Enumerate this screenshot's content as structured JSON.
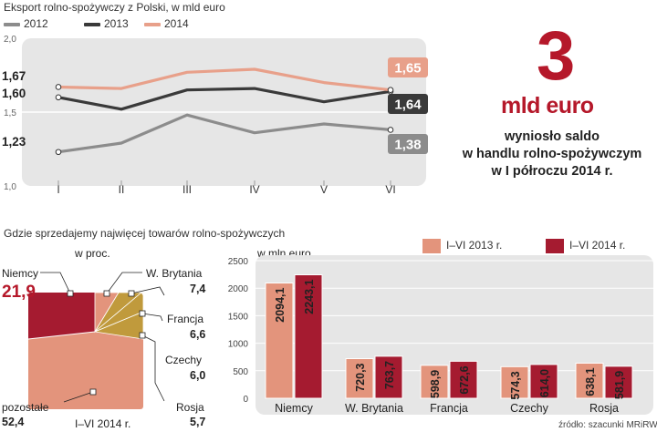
{
  "line_chart_title": "Eksport rolno-spożywczy z Polski, w mld euro",
  "bar_section_title": "Gdzie sprzedajemy najwięcej towarów rolno-spożywczych",
  "callout": {
    "big_number": "3",
    "unit": "mld euro",
    "lines": [
      "wyniosło saldo",
      "w handlu rolno-spożywczym",
      "w I półroczu 2014 r."
    ]
  },
  "pie": {
    "unit_label": "w proc.",
    "period_label": "I–VI 2014 r.",
    "slices": [
      {
        "name": "Niemcy",
        "value": "21,9"
      },
      {
        "name": "W. Brytania",
        "value": "7,4"
      },
      {
        "name": "Francja",
        "value": "6,6"
      },
      {
        "name": "Czechy",
        "value": "6,0"
      },
      {
        "name": "Rosja",
        "value": "5,7"
      },
      {
        "name": "pozostałe",
        "value": "52,4"
      }
    ]
  },
  "source": "źródło: szacunki MRiRW",
  "colors": {
    "s2012": "#8c8c8c",
    "s2013": "#3a3a3a",
    "s2014": "#e8a08a",
    "bar2013": "#e3947c",
    "bar2014": "#a51b30",
    "pie_niemcy": "#a51b30",
    "pie_rest": "#e3947c",
    "pie_gold": "#c09a3c",
    "accent": "#b5182a"
  },
  "chart_data": [
    {
      "type": "line",
      "title": "Eksport rolno-spożywczy z Polski, w mld euro",
      "categories": [
        "I",
        "II",
        "III",
        "IV",
        "V",
        "VI"
      ],
      "ylim": [
        1.0,
        2.0
      ],
      "yticks": [
        1.0,
        1.5,
        2.0
      ],
      "ytick_labels": [
        "1,0",
        "1,5",
        "2,0"
      ],
      "series": [
        {
          "name": "2012",
          "values": [
            1.23,
            1.29,
            1.48,
            1.36,
            1.42,
            1.38
          ],
          "start_label": "1,23",
          "end_label": "1,38"
        },
        {
          "name": "2013",
          "values": [
            1.6,
            1.52,
            1.65,
            1.66,
            1.57,
            1.64
          ],
          "start_label": "1,60",
          "end_label": "1,64"
        },
        {
          "name": "2014",
          "values": [
            1.67,
            1.66,
            1.77,
            1.79,
            1.7,
            1.65
          ],
          "start_label": "1,67",
          "end_label": "1,65"
        }
      ]
    },
    {
      "type": "bar",
      "unit_label": "w mln euro",
      "categories": [
        "Niemcy",
        "W. Brytania",
        "Francja",
        "Czechy",
        "Rosja"
      ],
      "ylim": [
        0,
        2500
      ],
      "yticks": [
        0,
        500,
        1000,
        1500,
        2000,
        2500
      ],
      "series": [
        {
          "name": "I–VI 2013 r.",
          "values": [
            2094.1,
            720.3,
            598.9,
            574.3,
            638.1
          ],
          "labels": [
            "2094,1",
            "720,3",
            "598,9",
            "574,3",
            "638,1"
          ]
        },
        {
          "name": "I–VI 2014 r.",
          "values": [
            2243.1,
            763.7,
            672.6,
            614.0,
            581.9
          ],
          "labels": [
            "2243,1",
            "763,7",
            "672,6",
            "614,0",
            "581,9"
          ]
        }
      ]
    }
  ]
}
